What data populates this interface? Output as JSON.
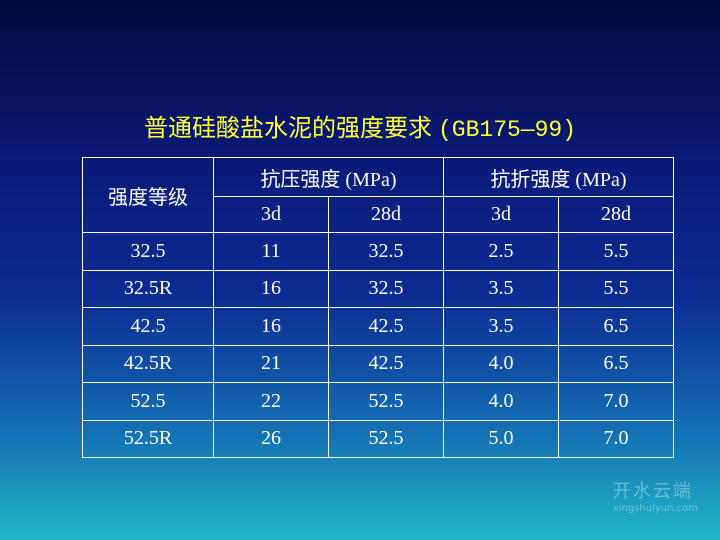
{
  "header": {
    "title": "普通硅酸盐水泥的强度要求",
    "code": "(GB175—99)"
  },
  "table": {
    "corner": "强度等级",
    "groups": [
      "抗压强度 (MPa)",
      "抗折强度 (MPa)"
    ],
    "subheaders": [
      "3d",
      "28d",
      "3d",
      "28d"
    ],
    "rows": [
      [
        "32.5",
        "11",
        "32.5",
        "2.5",
        "5.5"
      ],
      [
        "32.5R",
        "16",
        "32.5",
        "3.5",
        "5.5"
      ],
      [
        "42.5",
        "16",
        "42.5",
        "3.5",
        "6.5"
      ],
      [
        "42.5R",
        "21",
        "42.5",
        "4.0",
        "6.5"
      ],
      [
        "52.5",
        "22",
        "52.5",
        "4.0",
        "7.0"
      ],
      [
        "52.5R",
        "26",
        "52.5",
        "5.0",
        "7.0"
      ]
    ]
  },
  "watermark": {
    "name": "开水云端",
    "url": "xingshuiyun.com"
  }
}
